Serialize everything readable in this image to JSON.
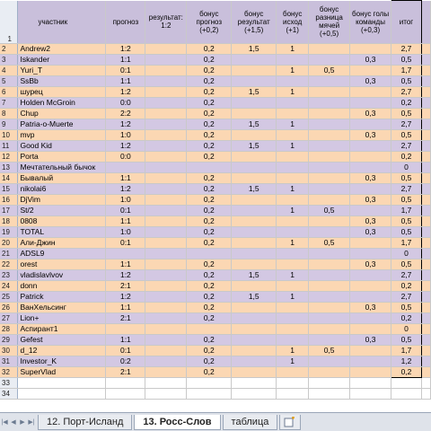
{
  "colors": {
    "orange_row": "#fbd7b3",
    "purple_row": "#d3c8e3",
    "header": "#c9bfdb"
  },
  "header": {
    "row_num": "1",
    "cols": [
      "участник",
      "прогноз",
      "результат: 1:2",
      "бонус прогноз (+0,2)",
      "бонус результат (+1,5)",
      "бонус исход (+1)",
      "бонус разница мячей (+0,5)",
      "бонус голы команды (+0,3)",
      "итог"
    ]
  },
  "rows": [
    {
      "n": "2",
      "name": "Andrew2",
      "pred": "1:2",
      "b1": "0,2",
      "b2": "1,5",
      "b3": "1",
      "b4": "",
      "b5": "",
      "total": "2,7"
    },
    {
      "n": "3",
      "name": "Iskander",
      "pred": "1:1",
      "b1": "0,2",
      "b2": "",
      "b3": "",
      "b4": "",
      "b5": "0,3",
      "total": "0,5"
    },
    {
      "n": "4",
      "name": "Yuri_T",
      "pred": "0:1",
      "b1": "0,2",
      "b2": "",
      "b3": "1",
      "b4": "0,5",
      "b5": "",
      "total": "1,7"
    },
    {
      "n": "5",
      "name": "SsBb",
      "pred": "1:1",
      "b1": "0,2",
      "b2": "",
      "b3": "",
      "b4": "",
      "b5": "0,3",
      "total": "0,5"
    },
    {
      "n": "6",
      "name": "шурец",
      "pred": "1:2",
      "b1": "0,2",
      "b2": "1,5",
      "b3": "1",
      "b4": "",
      "b5": "",
      "total": "2,7"
    },
    {
      "n": "7",
      "name": "Holden McGroin",
      "pred": "0:0",
      "b1": "0,2",
      "b2": "",
      "b3": "",
      "b4": "",
      "b5": "",
      "total": "0,2"
    },
    {
      "n": "8",
      "name": "Chup",
      "pred": "2:2",
      "b1": "0,2",
      "b2": "",
      "b3": "",
      "b4": "",
      "b5": "0,3",
      "total": "0,5"
    },
    {
      "n": "9",
      "name": "Patria-o-Muerte",
      "pred": "1:2",
      "b1": "0,2",
      "b2": "1,5",
      "b3": "1",
      "b4": "",
      "b5": "",
      "total": "2,7"
    },
    {
      "n": "10",
      "name": "mvp",
      "pred": "1:0",
      "b1": "0,2",
      "b2": "",
      "b3": "",
      "b4": "",
      "b5": "0,3",
      "total": "0,5"
    },
    {
      "n": "11",
      "name": "Good Kid",
      "pred": "1:2",
      "b1": "0,2",
      "b2": "1,5",
      "b3": "1",
      "b4": "",
      "b5": "",
      "total": "2,7"
    },
    {
      "n": "12",
      "name": "Porta",
      "pred": "0:0",
      "b1": "0,2",
      "b2": "",
      "b3": "",
      "b4": "",
      "b5": "",
      "total": "0,2"
    },
    {
      "n": "13",
      "name": "Мечтательный бычок",
      "pred": "",
      "b1": "",
      "b2": "",
      "b3": "",
      "b4": "",
      "b5": "",
      "total": "0"
    },
    {
      "n": "14",
      "name": "Бывалый",
      "pred": "1:1",
      "b1": "0,2",
      "b2": "",
      "b3": "",
      "b4": "",
      "b5": "0,3",
      "total": "0,5"
    },
    {
      "n": "15",
      "name": "nikolai6",
      "pred": "1:2",
      "b1": "0,2",
      "b2": "1,5",
      "b3": "1",
      "b4": "",
      "b5": "",
      "total": "2,7"
    },
    {
      "n": "16",
      "name": "DjVim",
      "pred": "1:0",
      "b1": "0,2",
      "b2": "",
      "b3": "",
      "b4": "",
      "b5": "0,3",
      "total": "0,5"
    },
    {
      "n": "17",
      "name": "St/2",
      "pred": "0:1",
      "b1": "0,2",
      "b2": "",
      "b3": "1",
      "b4": "0,5",
      "b5": "",
      "total": "1,7"
    },
    {
      "n": "18",
      "name": "0808",
      "pred": "1:1",
      "b1": "0,2",
      "b2": "",
      "b3": "",
      "b4": "",
      "b5": "0,3",
      "total": "0,5"
    },
    {
      "n": "19",
      "name": "TOTAL",
      "pred": "1:0",
      "b1": "0,2",
      "b2": "",
      "b3": "",
      "b4": "",
      "b5": "0,3",
      "total": "0,5"
    },
    {
      "n": "20",
      "name": "Али-Джин",
      "pred": "0:1",
      "b1": "0,2",
      "b2": "",
      "b3": "1",
      "b4": "0,5",
      "b5": "",
      "total": "1,7"
    },
    {
      "n": "21",
      "name": "ADSL9",
      "pred": "",
      "b1": "",
      "b2": "",
      "b3": "",
      "b4": "",
      "b5": "",
      "total": "0"
    },
    {
      "n": "22",
      "name": "orest",
      "pred": "1:1",
      "b1": "0,2",
      "b2": "",
      "b3": "",
      "b4": "",
      "b5": "0,3",
      "total": "0,5"
    },
    {
      "n": "23",
      "name": "vladislavlvov",
      "pred": "1:2",
      "b1": "0,2",
      "b2": "1,5",
      "b3": "1",
      "b4": "",
      "b5": "",
      "total": "2,7"
    },
    {
      "n": "24",
      "name": "donn",
      "pred": "2:1",
      "b1": "0,2",
      "b2": "",
      "b3": "",
      "b4": "",
      "b5": "",
      "total": "0,2"
    },
    {
      "n": "25",
      "name": "Patrick",
      "pred": "1:2",
      "b1": "0,2",
      "b2": "1,5",
      "b3": "1",
      "b4": "",
      "b5": "",
      "total": "2,7"
    },
    {
      "n": "26",
      "name": "ВанХельсинг",
      "pred": "1:1",
      "b1": "0,2",
      "b2": "",
      "b3": "",
      "b4": "",
      "b5": "0,3",
      "total": "0,5"
    },
    {
      "n": "27",
      "name": "Lion+",
      "pred": "2:1",
      "b1": "0,2",
      "b2": "",
      "b3": "",
      "b4": "",
      "b5": "",
      "total": "0,2"
    },
    {
      "n": "28",
      "name": "Аспирант1",
      "pred": "",
      "b1": "",
      "b2": "",
      "b3": "",
      "b4": "",
      "b5": "",
      "total": "0"
    },
    {
      "n": "29",
      "name": "Gefest",
      "pred": "1:1",
      "b1": "0,2",
      "b2": "",
      "b3": "",
      "b4": "",
      "b5": "0,3",
      "total": "0,5"
    },
    {
      "n": "30",
      "name": "d_12",
      "pred": "0:1",
      "b1": "0,2",
      "b2": "",
      "b3": "1",
      "b4": "0,5",
      "b5": "",
      "total": "1,7"
    },
    {
      "n": "31",
      "name": "Investor_K",
      "pred": "0:2",
      "b1": "0,2",
      "b2": "",
      "b3": "1",
      "b4": "",
      "b5": "",
      "total": "1,2"
    },
    {
      "n": "32",
      "name": "SuperVlad",
      "pred": "2:1",
      "b1": "0,2",
      "b2": "",
      "b3": "",
      "b4": "",
      "b5": "",
      "total": "0,2"
    }
  ],
  "empty_rows": [
    "33",
    "34"
  ],
  "tabs": {
    "nav": [
      "|◀",
      "◀",
      "▶",
      "▶|"
    ],
    "items": [
      {
        "label": "12. Порт-Исланд",
        "active": false
      },
      {
        "label": "13. Росс-Слов",
        "active": true
      },
      {
        "label": "таблица",
        "active": false
      }
    ],
    "new_tab_icon": "new-sheet-icon"
  }
}
